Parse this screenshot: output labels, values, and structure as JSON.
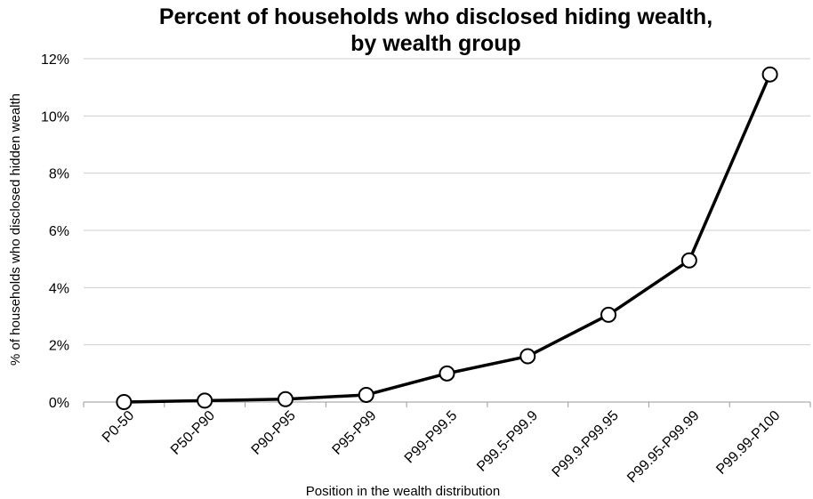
{
  "chart_data": {
    "type": "line",
    "title": [
      "Percent of households who disclosed hiding wealth,",
      "by wealth group"
    ],
    "xlabel": "Position in the wealth distribution",
    "ylabel": "% of households who disclosed hidden wealth",
    "categories": [
      "P0-50",
      "P50-P90",
      "P90-P95",
      "P95-P99",
      "P99-P99.5",
      "P99.5-P99.9",
      "P99.9-P99.95",
      "P99.95-P99.99",
      "P99.99-P100"
    ],
    "series": [
      {
        "values": [
          0.0,
          0.05,
          0.1,
          0.25,
          1.0,
          1.6,
          3.05,
          4.95,
          11.45
        ]
      }
    ],
    "ylim": [
      0,
      12
    ],
    "yticks": [
      0,
      2,
      4,
      6,
      8,
      10,
      12
    ],
    "ytick_labels": [
      "0%",
      "2%",
      "4%",
      "6%",
      "8%",
      "10%",
      "12%"
    ],
    "grid": "horizontal",
    "legend": "none"
  }
}
